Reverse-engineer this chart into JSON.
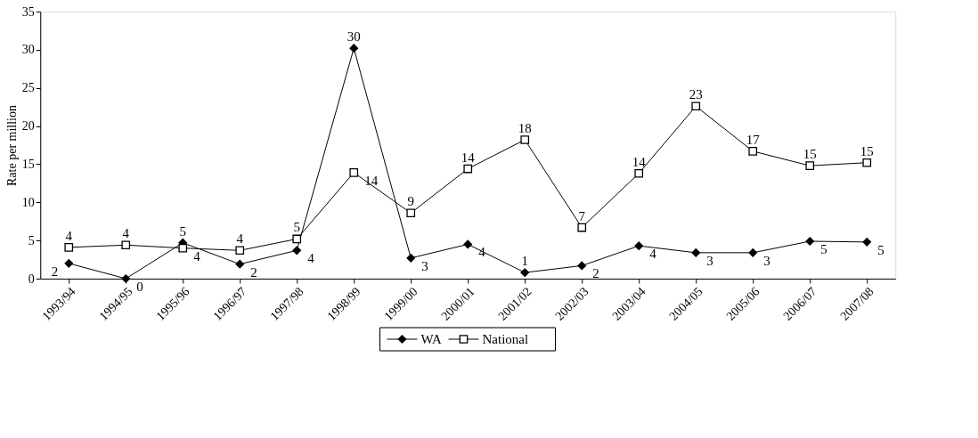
{
  "chart_data": {
    "type": "line",
    "ylabel": "Rate per million",
    "categories": [
      "1993/94",
      "1994/95",
      "1995/96",
      "1996/97",
      "1997/98",
      "1998/99",
      "1999/00",
      "2000/01",
      "2001/02",
      "2002/03",
      "2003/04",
      "2004/05",
      "2005/06",
      "2006/07",
      "2007/08"
    ],
    "series": [
      {
        "name": "WA",
        "color": "#000000",
        "marker": "diamond",
        "values": [
          2.0,
          0,
          4.7,
          1.9,
          3.7,
          30.2,
          2.7,
          4.5,
          0.8,
          1.7,
          4.3,
          3.4,
          3.4,
          4.9,
          4.8
        ],
        "value_labels": [
          "2",
          "0",
          "5",
          "2",
          "4",
          "30",
          "3",
          "4",
          "1",
          "2",
          "4",
          "3",
          "3",
          "5",
          "5"
        ]
      },
      {
        "name": "National",
        "color": "#000000",
        "marker": "square",
        "values": [
          4.1,
          4.4,
          4.0,
          3.7,
          5.2,
          13.9,
          8.6,
          14.4,
          18.2,
          6.7,
          13.8,
          22.6,
          16.7,
          14.8,
          15.2
        ],
        "value_labels": [
          "4",
          "4",
          "4",
          "4",
          "5",
          "14",
          "9",
          "14",
          "18",
          "7",
          "14",
          "23",
          "17",
          "15",
          "15"
        ]
      }
    ],
    "ylim": [
      0,
      35
    ],
    "yticks": [
      0,
      5,
      10,
      15,
      20,
      25,
      30,
      35
    ],
    "grid": false,
    "legend": "bottom"
  }
}
